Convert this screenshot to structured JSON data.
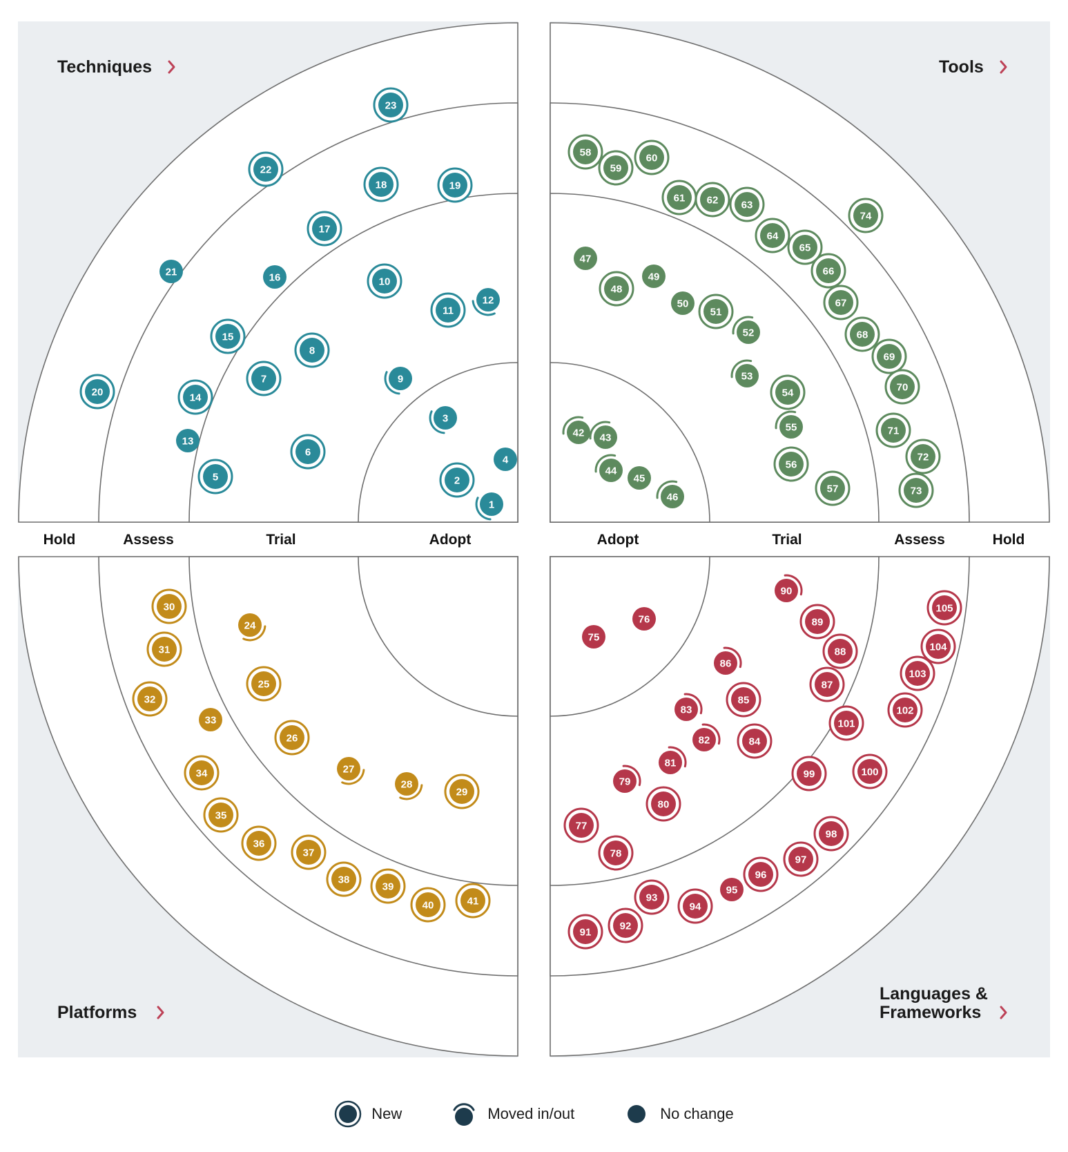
{
  "quadrants": {
    "techniques": {
      "label": "Techniques",
      "color": "#2a8a99"
    },
    "tools": {
      "label": "Tools",
      "color": "#5d8a5e"
    },
    "platforms": {
      "label": "Platforms",
      "color": "#c28b1a"
    },
    "languages": {
      "label_line1": "Languages &",
      "label_line2": "Frameworks",
      "color": "#b5374a"
    }
  },
  "rings": {
    "left": [
      "Hold",
      "Assess",
      "Trial",
      "Adopt"
    ],
    "right": [
      "Adopt",
      "Trial",
      "Assess",
      "Hold"
    ]
  },
  "legend": {
    "new": "New",
    "moved": "Moved in/out",
    "nochange": "No change",
    "color": "#1d3b4c"
  },
  "blips": {
    "techniques": [
      {
        "id": "1",
        "status": "moved",
        "rot": 150
      },
      {
        "id": "2",
        "status": "new"
      },
      {
        "id": "3",
        "status": "moved",
        "rot": 150
      },
      {
        "id": "4",
        "status": "nochange"
      },
      {
        "id": "5",
        "status": "new"
      },
      {
        "id": "6",
        "status": "new"
      },
      {
        "id": "7",
        "status": "new"
      },
      {
        "id": "8",
        "status": "new"
      },
      {
        "id": "9",
        "status": "moved",
        "rot": 150
      },
      {
        "id": "10",
        "status": "new"
      },
      {
        "id": "11",
        "status": "new"
      },
      {
        "id": "12",
        "status": "moved",
        "rot": 120
      },
      {
        "id": "13",
        "status": "nochange"
      },
      {
        "id": "14",
        "status": "new"
      },
      {
        "id": "15",
        "status": "new"
      },
      {
        "id": "16",
        "status": "nochange"
      },
      {
        "id": "17",
        "status": "new"
      },
      {
        "id": "18",
        "status": "new"
      },
      {
        "id": "19",
        "status": "new"
      },
      {
        "id": "20",
        "status": "new"
      },
      {
        "id": "21",
        "status": "nochange"
      },
      {
        "id": "22",
        "status": "new"
      },
      {
        "id": "23",
        "status": "new"
      }
    ],
    "tools": [
      {
        "id": "42",
        "status": "moved",
        "rot": 230
      },
      {
        "id": "43",
        "status": "moved",
        "rot": 230
      },
      {
        "id": "44",
        "status": "moved",
        "rot": 230
      },
      {
        "id": "45",
        "status": "nochange"
      },
      {
        "id": "46",
        "status": "moved",
        "rot": 230
      },
      {
        "id": "47",
        "status": "nochange"
      },
      {
        "id": "48",
        "status": "new"
      },
      {
        "id": "49",
        "status": "nochange"
      },
      {
        "id": "50",
        "status": "nochange"
      },
      {
        "id": "51",
        "status": "new"
      },
      {
        "id": "52",
        "status": "moved",
        "rot": 230
      },
      {
        "id": "53",
        "status": "moved",
        "rot": 230
      },
      {
        "id": "54",
        "status": "new"
      },
      {
        "id": "55",
        "status": "moved",
        "rot": 230
      },
      {
        "id": "56",
        "status": "new"
      },
      {
        "id": "57",
        "status": "new"
      },
      {
        "id": "58",
        "status": "new"
      },
      {
        "id": "59",
        "status": "new"
      },
      {
        "id": "60",
        "status": "new"
      },
      {
        "id": "61",
        "status": "new"
      },
      {
        "id": "62",
        "status": "new"
      },
      {
        "id": "63",
        "status": "new"
      },
      {
        "id": "64",
        "status": "new"
      },
      {
        "id": "65",
        "status": "new"
      },
      {
        "id": "66",
        "status": "new"
      },
      {
        "id": "67",
        "status": "new"
      },
      {
        "id": "68",
        "status": "new"
      },
      {
        "id": "69",
        "status": "new"
      },
      {
        "id": "70",
        "status": "new"
      },
      {
        "id": "71",
        "status": "new"
      },
      {
        "id": "72",
        "status": "new"
      },
      {
        "id": "73",
        "status": "new"
      },
      {
        "id": "74",
        "status": "new"
      }
    ],
    "platforms": [
      {
        "id": "24",
        "status": "moved",
        "rot": 60
      },
      {
        "id": "25",
        "status": "new"
      },
      {
        "id": "26",
        "status": "new"
      },
      {
        "id": "27",
        "status": "moved",
        "rot": 60
      },
      {
        "id": "28",
        "status": "moved",
        "rot": 60
      },
      {
        "id": "29",
        "status": "new"
      },
      {
        "id": "30",
        "status": "new"
      },
      {
        "id": "31",
        "status": "new"
      },
      {
        "id": "32",
        "status": "new"
      },
      {
        "id": "33",
        "status": "nochange"
      },
      {
        "id": "34",
        "status": "new"
      },
      {
        "id": "35",
        "status": "new"
      },
      {
        "id": "36",
        "status": "new"
      },
      {
        "id": "37",
        "status": "new"
      },
      {
        "id": "38",
        "status": "new"
      },
      {
        "id": "39",
        "status": "new"
      },
      {
        "id": "40",
        "status": "new"
      },
      {
        "id": "41",
        "status": "new"
      }
    ],
    "languages": [
      {
        "id": "75",
        "status": "nochange"
      },
      {
        "id": "76",
        "status": "nochange"
      },
      {
        "id": "77",
        "status": "new"
      },
      {
        "id": "78",
        "status": "new"
      },
      {
        "id": "79",
        "status": "moved",
        "rot": -40
      },
      {
        "id": "80",
        "status": "new"
      },
      {
        "id": "81",
        "status": "moved",
        "rot": -40
      },
      {
        "id": "82",
        "status": "moved",
        "rot": -40
      },
      {
        "id": "83",
        "status": "moved",
        "rot": -40
      },
      {
        "id": "84",
        "status": "new"
      },
      {
        "id": "85",
        "status": "new"
      },
      {
        "id": "86",
        "status": "moved",
        "rot": -40
      },
      {
        "id": "87",
        "status": "new"
      },
      {
        "id": "88",
        "status": "new"
      },
      {
        "id": "89",
        "status": "new"
      },
      {
        "id": "90",
        "status": "moved",
        "rot": -40
      },
      {
        "id": "91",
        "status": "new"
      },
      {
        "id": "92",
        "status": "new"
      },
      {
        "id": "93",
        "status": "new"
      },
      {
        "id": "94",
        "status": "new"
      },
      {
        "id": "95",
        "status": "nochange"
      },
      {
        "id": "96",
        "status": "new"
      },
      {
        "id": "97",
        "status": "new"
      },
      {
        "id": "98",
        "status": "new"
      },
      {
        "id": "99",
        "status": "new"
      },
      {
        "id": "100",
        "status": "new"
      },
      {
        "id": "101",
        "status": "new"
      },
      {
        "id": "102",
        "status": "new"
      },
      {
        "id": "103",
        "status": "new"
      },
      {
        "id": "104",
        "status": "new"
      },
      {
        "id": "105",
        "status": "new"
      }
    ]
  }
}
